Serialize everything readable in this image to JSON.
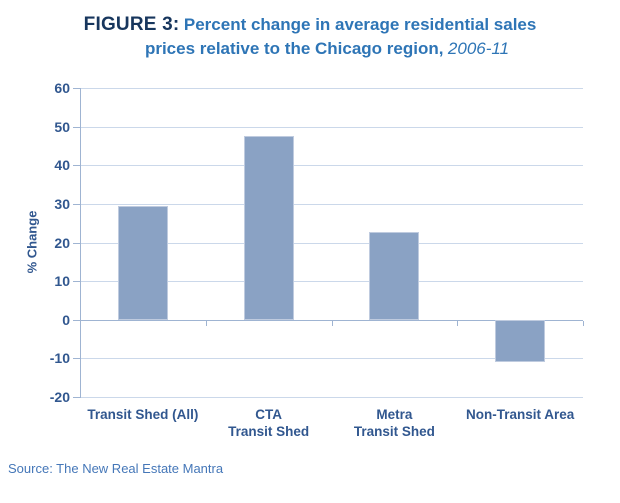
{
  "figure": {
    "title_prefix": "FIGURE 3:",
    "title_line1_rest": "Percent change in average residential sales",
    "title_line2": "prices relative to the Chicago region,",
    "title_date": "2006-11",
    "source": "Source: The New Real Estate Mantra"
  },
  "chart_data": {
    "type": "bar",
    "title": "FIGURE 3: Percent change in average residential sales prices relative to the Chicago region, 2006-11",
    "categories": [
      "Transit Shed (All)",
      "CTA Transit Shed",
      "Metra Transit Shed",
      "Non-Transit Area"
    ],
    "category_lines": [
      [
        "Transit Shed (All)"
      ],
      [
        "CTA",
        "Transit Shed"
      ],
      [
        "Metra",
        "Transit Shed"
      ],
      [
        "Non-Transit Area"
      ]
    ],
    "values": [
      29.5,
      47.5,
      22.7,
      -11
    ],
    "xlabel": "",
    "ylabel": "% Change",
    "ylim": [
      -20,
      60
    ],
    "yticks": [
      60,
      50,
      40,
      30,
      20,
      10,
      0,
      -10,
      -20
    ],
    "grid": true,
    "legend": false,
    "source": "Source: The New Real Estate Mantra",
    "colors": {
      "bar_fill": "#8AA2C4",
      "bar_border": "#BFCBDF",
      "gridline": "#CBD8EA",
      "axis_line": "#9FB4D2",
      "tick_label": "#31578F",
      "title_prefix": "#17365D",
      "title_blue": "#2E75B6",
      "source_text": "#4577B8"
    }
  }
}
